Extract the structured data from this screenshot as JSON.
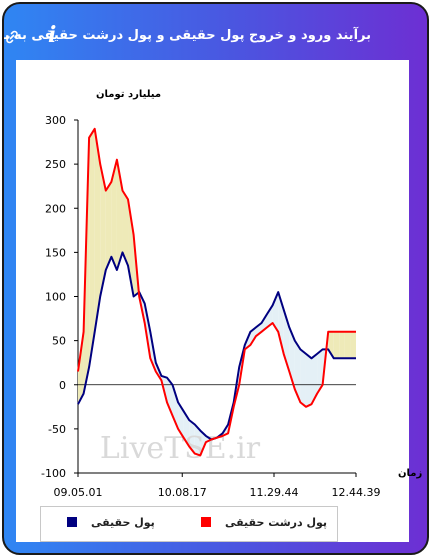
{
  "header": {
    "title": "برآیند ورود و خروج پول حقیقی و پول درشت حقیقی به بازار",
    "info_glyph": "i",
    "link_icon": "link-icon"
  },
  "colors": {
    "gradient_start": "#2f86f3",
    "gradient_end": "#6d2fd3",
    "real_money": "#000080",
    "big_real_money": "#ff0000",
    "fill_between": "#eeeab8",
    "fill_between_light": "#e4f0f6"
  },
  "watermark": "LiveTSE.ir",
  "chart_data": {
    "type": "line",
    "ylabel": "میلیارد تومان",
    "xlabel": "زمان",
    "ylim": [
      -100,
      300
    ],
    "yticks": [
      -100,
      -50,
      0,
      50,
      100,
      150,
      200,
      250,
      300
    ],
    "xticks": [
      "09.05.01",
      "10.08.17",
      "11.29.44",
      "12.44.39"
    ],
    "x": [
      0,
      2,
      4,
      6,
      8,
      10,
      12,
      14,
      16,
      18,
      20,
      22,
      24,
      26,
      28,
      30,
      32,
      34,
      36,
      38,
      40,
      42,
      44,
      46,
      48,
      50,
      52,
      54,
      56,
      58,
      60,
      62,
      64,
      66,
      68,
      70,
      72,
      74,
      76,
      78,
      80,
      82,
      84,
      86,
      88,
      90,
      92,
      94,
      96,
      98,
      100
    ],
    "series": [
      {
        "name": "پول حقیقی",
        "color": "#000080",
        "values": [
          -22,
          -10,
          20,
          60,
          100,
          130,
          145,
          130,
          150,
          135,
          100,
          105,
          92,
          60,
          25,
          10,
          8,
          0,
          -20,
          -30,
          -40,
          -45,
          -52,
          -58,
          -62,
          -60,
          -55,
          -45,
          -20,
          20,
          45,
          60,
          65,
          70,
          80,
          90,
          105,
          85,
          65,
          50,
          40,
          35,
          30,
          35,
          40,
          40,
          30,
          30,
          30,
          30,
          30
        ]
      },
      {
        "name": "پول درشت حقیقی",
        "color": "#ff0000",
        "values": [
          15,
          60,
          280,
          290,
          250,
          220,
          230,
          255,
          220,
          210,
          170,
          100,
          70,
          30,
          15,
          5,
          -20,
          -35,
          -50,
          -60,
          -70,
          -78,
          -80,
          -65,
          -62,
          -60,
          -58,
          -55,
          -25,
          0,
          40,
          45,
          55,
          60,
          65,
          70,
          60,
          35,
          15,
          -5,
          -20,
          -25,
          -22,
          -10,
          0,
          60,
          60,
          60,
          60,
          60,
          60
        ]
      }
    ]
  }
}
